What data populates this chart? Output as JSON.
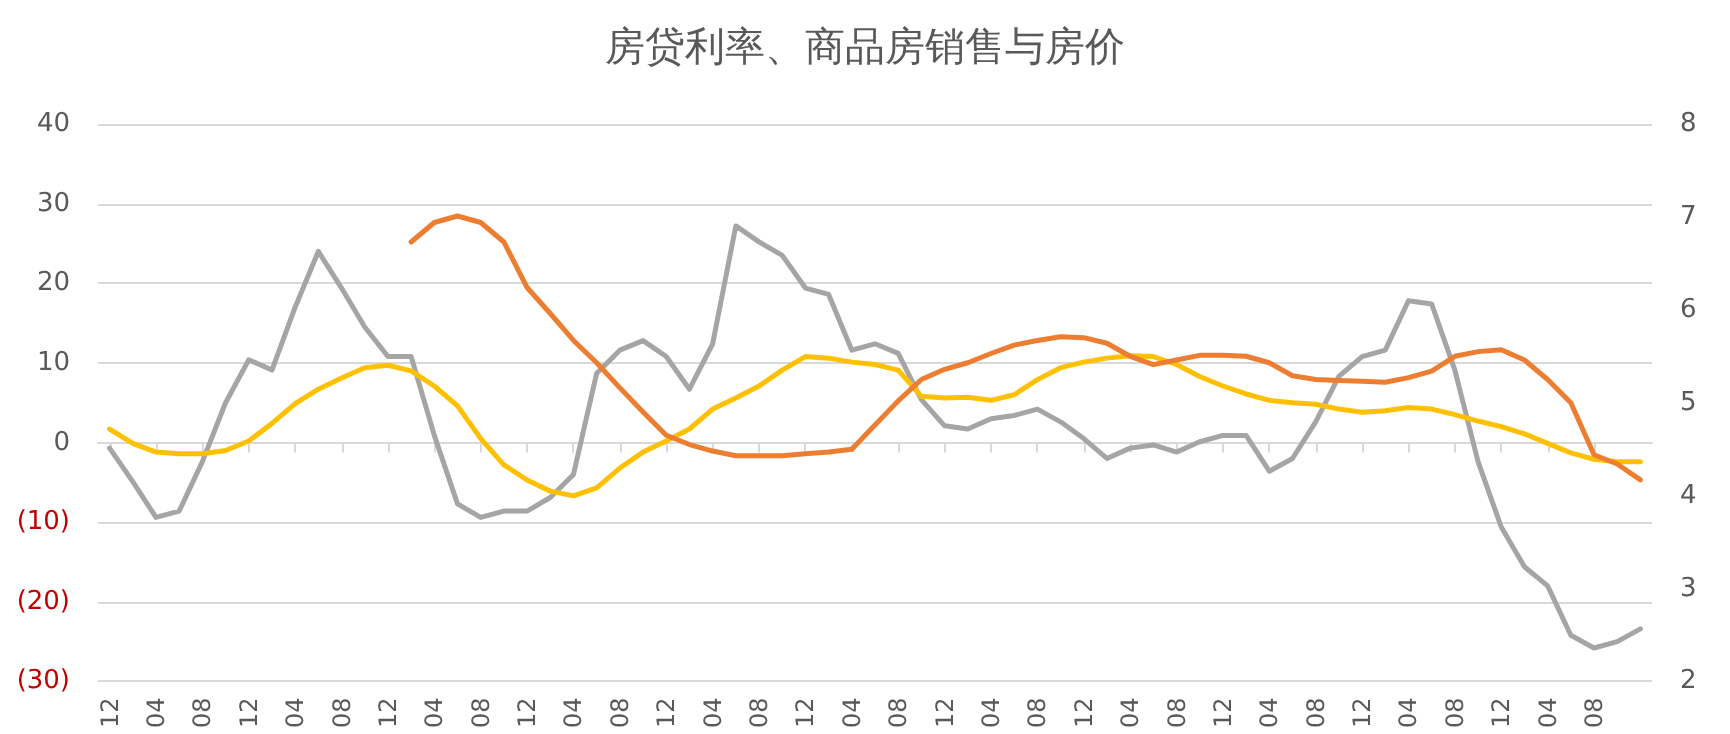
{
  "chart_data": {
    "type": "line",
    "title": "房贷利率、商品房销售与房价",
    "categories": [
      "12",
      null,
      "04",
      null,
      "08",
      null,
      "12",
      null,
      "04",
      null,
      "08",
      null,
      "12",
      null,
      "04",
      null,
      "08",
      null,
      "12",
      null,
      "04",
      null,
      "08",
      null,
      "12",
      null,
      "04",
      null,
      "08",
      null,
      "12",
      null,
      "04",
      null,
      "08",
      null,
      "12",
      null,
      "04",
      null,
      "08",
      null,
      "12",
      null,
      "04",
      null,
      "08",
      null,
      "12",
      null,
      "04",
      null,
      "08",
      null,
      "12",
      null,
      "04",
      null,
      "08",
      null,
      "12",
      null,
      "04",
      null,
      "08",
      null,
      null
    ],
    "series": [
      {
        "color": "#a5a5a5",
        "values": [
          -0.7,
          -4.9,
          -9.4,
          -8.6,
          -2.4,
          5.0,
          10.4,
          9.1,
          17.0,
          24.0,
          19.4,
          14.5,
          10.8,
          10.8,
          0.9,
          -7.7,
          -9.4,
          -8.6,
          -8.6,
          -6.9,
          -4.0,
          8.7,
          11.6,
          12.8,
          10.8,
          6.7,
          12.4,
          27.2,
          25.2,
          23.5,
          19.4,
          18.6,
          11.6,
          12.4,
          11.2,
          5.4,
          2.1,
          1.7,
          3.0,
          3.4,
          4.2,
          2.6,
          0.5,
          -2.0,
          -0.7,
          -0.3,
          -1.2,
          0.1,
          0.9,
          0.9,
          -3.6,
          -2.0,
          2.6,
          8.3,
          10.8,
          11.6,
          17.8,
          17.4,
          9.1,
          -2.4,
          -10.6,
          -15.6,
          -18.0,
          -24.2,
          -25.8,
          -25.0,
          -23.4
        ]
      },
      {
        "color": "#ffc000",
        "values": [
          1.7,
          -0.1,
          -1.2,
          -1.4,
          -1.4,
          -1.0,
          0.2,
          2.4,
          4.9,
          6.7,
          8.1,
          9.4,
          9.7,
          9.0,
          7.1,
          4.6,
          0.5,
          -2.8,
          -4.7,
          -6.1,
          -6.7,
          -5.7,
          -3.2,
          -1.2,
          0.2,
          1.7,
          4.2,
          5.6,
          7.1,
          9.1,
          10.8,
          10.6,
          10.1,
          9.8,
          9.1,
          5.8,
          5.6,
          5.7,
          5.3,
          6.0,
          7.9,
          9.4,
          10.1,
          10.6,
          10.9,
          10.8,
          9.8,
          8.3,
          7.1,
          6.1,
          5.3,
          5.0,
          4.8,
          4.2,
          3.8,
          4.0,
          4.4,
          4.2,
          3.5,
          2.7,
          2.0,
          1.1,
          -0.1,
          -1.3,
          -2.1,
          -2.4,
          -2.4
        ]
      },
      {
        "color": "#ed7d31",
        "axis": "y2",
        "values": [
          null,
          null,
          null,
          null,
          null,
          null,
          null,
          null,
          null,
          null,
          null,
          null,
          null,
          6.73,
          6.94,
          7.01,
          6.94,
          6.73,
          6.24,
          5.96,
          5.67,
          5.43,
          5.16,
          4.9,
          4.65,
          4.55,
          4.48,
          4.43,
          4.43,
          4.43,
          4.45,
          4.47,
          4.5,
          4.76,
          5.02,
          5.25,
          5.36,
          5.43,
          5.53,
          5.62,
          5.67,
          5.71,
          5.7,
          5.64,
          5.5,
          5.41,
          5.46,
          5.51,
          5.51,
          5.5,
          5.43,
          5.29,
          5.25,
          5.24,
          5.23,
          5.22,
          5.27,
          5.34,
          5.5,
          5.55,
          5.57,
          5.46,
          5.25,
          5.0,
          4.44,
          4.34,
          4.17
        ]
      }
    ],
    "ylim": [
      -30,
      40
    ],
    "yticks": [
      {
        "value": -30,
        "label": "(30)"
      },
      {
        "value": -20,
        "label": "(20)"
      },
      {
        "value": -10,
        "label": "(10)"
      },
      0,
      10,
      20,
      30,
      40
    ],
    "y2lim": [
      2,
      8
    ],
    "y2ticks": [
      2,
      3,
      4,
      5,
      6,
      7,
      8
    ],
    "grid": "y",
    "marker": "none",
    "line_style": "solid"
  }
}
